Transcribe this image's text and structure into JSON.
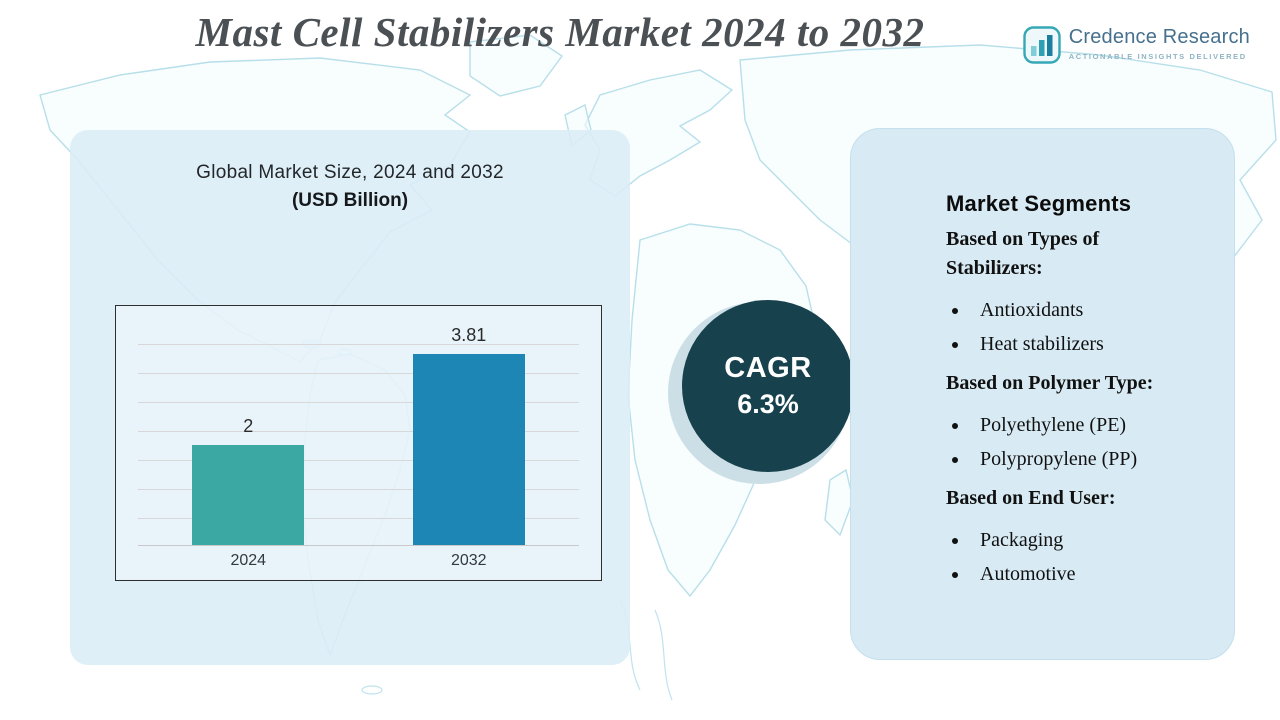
{
  "title": "Mast Cell Stabilizers Market 2024 to 2032",
  "logo": {
    "name": "Credence Research",
    "tagline": "Actionable Insights Delivered",
    "icon": "bar-chart-icon"
  },
  "chart_panel": {
    "title": "Global Market Size, 2024 and 2032",
    "subtitle": "(USD Billion)"
  },
  "chart_data": {
    "type": "bar",
    "title": "Global Market Size, 2024 and 2032",
    "subtitle": "(USD Billion)",
    "categories": [
      "2024",
      "2032"
    ],
    "values": [
      2,
      3.81
    ],
    "value_labels": [
      "2",
      "3.81"
    ],
    "bar_colors": [
      "#3ba8a3",
      "#1e86b5"
    ],
    "xlabel": "",
    "ylabel": "",
    "ylim": [
      0,
      4.6
    ],
    "grid": true,
    "legend": "none"
  },
  "cagr": {
    "label": "CAGR",
    "value": "6.3%",
    "circle_color": "#16414d"
  },
  "segments": {
    "heading": "Market Segments",
    "groups": [
      {
        "title": "Based on Types of Stabilizers:",
        "items": [
          "Antioxidants",
          "Heat stabilizers"
        ]
      },
      {
        "title": "Based on Polymer Type:",
        "items": [
          "Polyethylene (PE)",
          "Polypropylene (PP)"
        ]
      },
      {
        "title": "Based on End User:",
        "items": [
          "Packaging",
          "Automotive"
        ]
      }
    ]
  }
}
